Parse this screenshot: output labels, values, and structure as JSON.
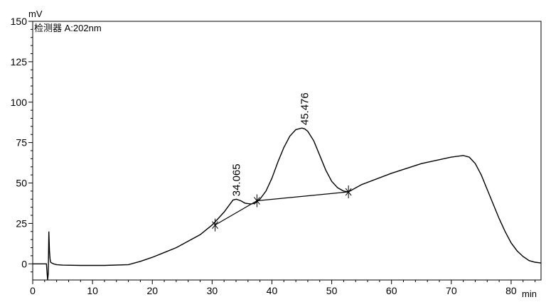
{
  "chart_data": {
    "type": "line",
    "detector_label": "检测器 A:202nm",
    "ylabel": "mV",
    "xlabel": "min",
    "xlim": [
      0,
      85
    ],
    "ylim": [
      -10,
      150
    ],
    "x_ticks": [
      0,
      10,
      20,
      30,
      40,
      50,
      60,
      70,
      80
    ],
    "x_tick_labels": [
      "0",
      "10",
      "20",
      "30",
      "40",
      "50",
      "60",
      "70",
      "80"
    ],
    "y_ticks": [
      0,
      25,
      50,
      75,
      100,
      125,
      150
    ],
    "y_tick_labels": [
      "0",
      "25",
      "50",
      "75",
      "100",
      "125",
      "150"
    ],
    "grid": false,
    "series": [
      {
        "x": [
          0,
          2.3,
          2.5,
          2.6,
          2.7,
          2.8,
          2.9,
          3.0,
          3.2,
          3.5,
          4.0,
          5.0,
          8.0,
          12.0,
          16.0,
          18.0,
          20.0,
          22.0,
          24.0,
          26.0,
          28.0,
          30.0,
          31.0,
          32.0,
          33.0,
          33.5,
          34.065,
          34.8,
          35.5,
          36.5,
          37.2,
          38.0,
          39.0,
          40.0,
          41.0,
          42.0,
          43.0,
          44.0,
          45.0,
          45.476,
          46.0,
          47.0,
          48.0,
          49.0,
          50.0,
          51.0,
          52.0,
          52.8,
          55.0,
          60.0,
          65.0,
          70.0,
          72.0,
          73.0,
          74.0,
          75.0,
          76.0,
          77.0,
          78.0,
          79.0,
          80.0,
          81.0,
          82.0,
          83.0,
          84.0,
          85.0
        ],
        "y": [
          0,
          0,
          -10,
          -6,
          20,
          8,
          3,
          1,
          0.5,
          0,
          -0.5,
          -0.8,
          -1,
          -1,
          -0.5,
          1.5,
          4,
          7,
          10,
          14,
          18,
          24,
          28,
          32,
          37,
          39.5,
          40,
          39,
          37.5,
          37,
          37.5,
          40,
          45,
          53,
          63,
          72,
          79,
          83,
          84,
          83.5,
          82,
          76,
          67,
          58,
          51,
          47,
          45,
          44.5,
          49,
          56,
          62,
          66,
          67,
          66,
          62,
          55,
          46,
          37,
          28,
          20,
          13,
          8,
          4.5,
          2,
          1,
          0.5
        ]
      }
    ],
    "baselines": [
      {
        "x": [
          30.5,
          37.5
        ],
        "y": [
          24,
          39
        ]
      },
      {
        "x": [
          37.5,
          52.8
        ],
        "y": [
          39,
          44.5
        ]
      }
    ],
    "integration_marks": [
      {
        "x": 30.5,
        "y": 24
      },
      {
        "x": 37.5,
        "y": 39
      },
      {
        "x": 52.8,
        "y": 44.5
      }
    ],
    "peak_labels": [
      {
        "text": "34.065",
        "x": 34.065,
        "y": 40
      },
      {
        "text": "45.476",
        "x": 45.476,
        "y": 84
      }
    ]
  }
}
